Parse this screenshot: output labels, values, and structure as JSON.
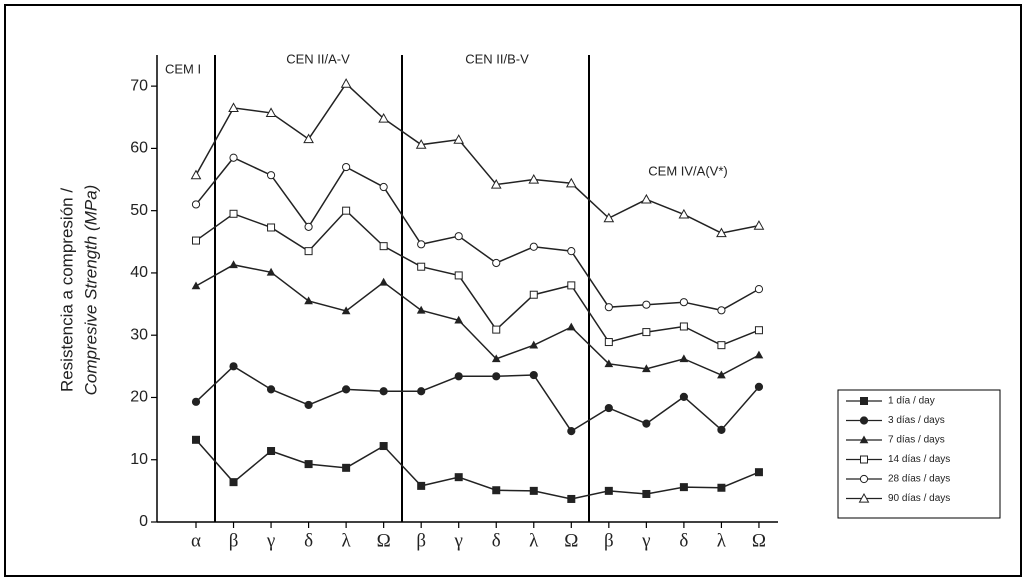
{
  "chart_data": {
    "type": "line",
    "group_labels": [
      "CEM I",
      "CEN II/A-V",
      "CEN II/B-V",
      "CEM IV/A(V*)"
    ],
    "y_label": [
      "Resistencia a compresión /",
      "Compresive Strength (MPa)"
    ],
    "categories": [
      "α",
      "β",
      "γ",
      "δ",
      "λ",
      "Ω",
      "β",
      "γ",
      "δ",
      "λ",
      "Ω",
      "β",
      "γ",
      "δ",
      "λ",
      "Ω"
    ],
    "ylim": [
      0,
      75
    ],
    "yticks": [
      0,
      10,
      20,
      30,
      40,
      50,
      60,
      70
    ],
    "series": [
      {
        "name": "1 día / day",
        "color": "#222222",
        "marker": "square-filled",
        "values": [
          13.2,
          6.4,
          11.4,
          9.3,
          8.7,
          12.2,
          5.8,
          7.2,
          5.1,
          5.0,
          3.7,
          5.0,
          4.5,
          5.6,
          5.5,
          8.0
        ]
      },
      {
        "name": "3 días / days",
        "color": "#222222",
        "marker": "circle-filled",
        "values": [
          19.3,
          25.0,
          21.3,
          18.8,
          21.3,
          21.0,
          21.0,
          23.4,
          23.4,
          23.6,
          14.6,
          18.3,
          15.8,
          20.1,
          14.8,
          21.7
        ]
      },
      {
        "name": "7 días / days",
        "color": "#222222",
        "marker": "triangle-filled",
        "values": [
          37.9,
          41.3,
          40.1,
          35.5,
          33.9,
          38.5,
          34.0,
          32.4,
          26.2,
          28.4,
          31.3,
          25.4,
          24.6,
          26.2,
          23.6,
          26.8
        ]
      },
      {
        "name": "14 días / days",
        "color": "#222222",
        "marker": "square-open",
        "values": [
          45.2,
          49.5,
          47.3,
          43.5,
          50.0,
          44.3,
          41.0,
          39.6,
          30.9,
          36.5,
          38.0,
          28.9,
          30.5,
          31.4,
          28.4,
          30.8
        ]
      },
      {
        "name": "28 días / days",
        "color": "#222222",
        "marker": "circle-open",
        "values": [
          51.0,
          58.5,
          55.7,
          47.4,
          57.0,
          53.8,
          44.6,
          45.9,
          41.6,
          44.2,
          43.5,
          34.5,
          34.9,
          35.3,
          34.0,
          37.4
        ]
      },
      {
        "name": "90 días / days",
        "color": "#222222",
        "marker": "triangle-open",
        "values": [
          55.7,
          66.5,
          65.7,
          61.5,
          70.4,
          64.8,
          60.6,
          61.4,
          54.2,
          55.0,
          54.4,
          48.8,
          51.8,
          49.4,
          46.4,
          47.6
        ]
      }
    ]
  }
}
